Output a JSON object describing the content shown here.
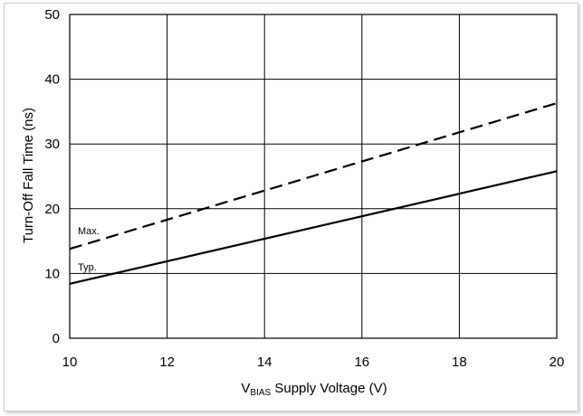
{
  "chart_data": {
    "type": "line",
    "xlabel_prefix": "V",
    "xlabel_subscript": "BIAS",
    "xlabel_suffix": " Supply Voltage (V)",
    "ylabel": "Turn-Off Fall Time (ns)",
    "xlim": [
      10,
      20
    ],
    "ylim": [
      0,
      50
    ],
    "x_ticks": [
      "10",
      "12",
      "14",
      "16",
      "18",
      "20"
    ],
    "y_ticks": [
      "0",
      "10",
      "20",
      "30",
      "40",
      "50"
    ],
    "grid": true,
    "series": [
      {
        "name": "Max.",
        "line_style": "dashed",
        "x": [
          10,
          20
        ],
        "y": [
          13.8,
          36.3
        ]
      },
      {
        "name": "Typ.",
        "line_style": "solid",
        "x": [
          10,
          20
        ],
        "y": [
          8.4,
          25.8
        ]
      }
    ]
  }
}
